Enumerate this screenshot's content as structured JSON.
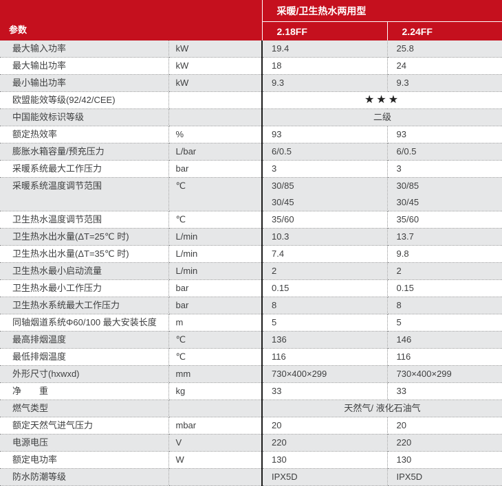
{
  "colors": {
    "header_red": "#c5101e",
    "row_alt_grey": "#e6e7e8",
    "body_text": "#3f4041",
    "grid_dotted": "#8f9091",
    "divider_black": "#1c1c1c",
    "header_text": "#ffffff"
  },
  "header": {
    "param_label": "参数",
    "group_label": "采暖/卫生热水两用型",
    "model1": "2.18FF",
    "model2": "2.24FF"
  },
  "rows": [
    {
      "param": "最大输入功率",
      "unit": "kW",
      "v1": "19.4",
      "v2": "25.8"
    },
    {
      "param": "最大输出功率",
      "unit": "kW",
      "v1": "18",
      "v2": "24"
    },
    {
      "param": "最小输出功率",
      "unit": "kW",
      "v1": "9.3",
      "v2": "9.3"
    },
    {
      "param": "欧盟能效等级(92/42/CEE)",
      "unit": "",
      "span": "★★★"
    },
    {
      "param": "中国能效标识等级",
      "unit": "",
      "span": "二级"
    },
    {
      "param": "额定热效率",
      "unit": "%",
      "v1": "93",
      "v2": "93"
    },
    {
      "param": "膨胀水箱容量/预充压力",
      "unit": "L/bar",
      "v1": "6/0.5",
      "v2": "6/0.5"
    },
    {
      "param": "采暖系统最大工作压力",
      "unit": "bar",
      "v1": "3",
      "v2": "3"
    },
    {
      "param": "采暖系统温度调节范围",
      "unit": "℃",
      "v1": [
        "30/85",
        "30/45"
      ],
      "v2": [
        "30/85",
        "30/45"
      ]
    },
    {
      "param": "卫生热水温度调节范围",
      "unit": "℃",
      "v1": "35/60",
      "v2": "35/60"
    },
    {
      "param": "卫生热水出水量(ΔT=25℃ 时)",
      "unit": "L/min",
      "v1": "10.3",
      "v2": "13.7"
    },
    {
      "param": "卫生热水出水量(ΔT=35℃ 时)",
      "unit": "L/min",
      "v1": "7.4",
      "v2": "9.8"
    },
    {
      "param": "卫生热水最小启动流量",
      "unit": "L/min",
      "v1": "2",
      "v2": "2"
    },
    {
      "param": "卫生热水最小工作压力",
      "unit": "bar",
      "v1": "0.15",
      "v2": "0.15"
    },
    {
      "param": "卫生热水系统最大工作压力",
      "unit": "bar",
      "v1": "8",
      "v2": "8"
    },
    {
      "param": "同轴烟道系统Φ60/100 最大安装长度",
      "unit": "m",
      "v1": "5",
      "v2": "5"
    },
    {
      "param": "最高排烟温度",
      "unit": "℃",
      "v1": "136",
      "v2": "146"
    },
    {
      "param": "最低排烟温度",
      "unit": "℃",
      "v1": "116",
      "v2": "116"
    },
    {
      "param": "外形尺寸(hxwxd)",
      "unit": "mm",
      "v1": "730×400×299",
      "v2": "730×400×299"
    },
    {
      "param": "净　　重",
      "unit": "kg",
      "v1": "33",
      "v2": "33"
    },
    {
      "param": "燃气类型",
      "unit": "",
      "span": "天然气/ 液化石油气"
    },
    {
      "param": "额定天然气进气压力",
      "unit": "mbar",
      "v1": "20",
      "v2": "20"
    },
    {
      "param": "电源电压",
      "unit": "V",
      "v1": "220",
      "v2": "220"
    },
    {
      "param": "额定电功率",
      "unit": "W",
      "v1": "130",
      "v2": "130"
    },
    {
      "param": "防水防潮等级",
      "unit": "",
      "v1": "IPX5D",
      "v2": "IPX5D"
    }
  ]
}
